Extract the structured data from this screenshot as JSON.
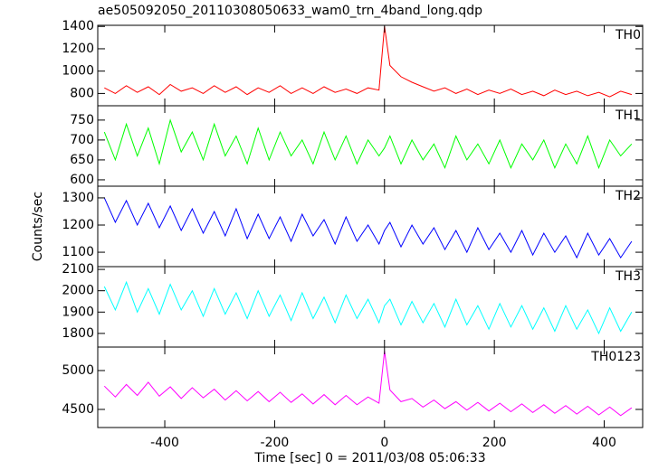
{
  "chart_data": [
    {
      "type": "line",
      "title": "ae505092050_20110308050633_wam0_trn_4band_long.qdp",
      "label": "TH0",
      "color": "#ff0000",
      "x": [
        -510,
        -490,
        -470,
        -450,
        -430,
        -410,
        -390,
        -370,
        -350,
        -330,
        -310,
        -290,
        -270,
        -250,
        -230,
        -210,
        -190,
        -170,
        -150,
        -130,
        -110,
        -90,
        -70,
        -50,
        -30,
        -10,
        0,
        10,
        30,
        50,
        70,
        90,
        110,
        130,
        150,
        170,
        190,
        210,
        230,
        250,
        270,
        290,
        310,
        330,
        350,
        370,
        390,
        410,
        430,
        450
      ],
      "values": [
        850,
        800,
        870,
        810,
        860,
        790,
        880,
        820,
        850,
        800,
        870,
        810,
        860,
        790,
        850,
        810,
        870,
        800,
        850,
        800,
        860,
        810,
        840,
        800,
        850,
        830,
        1400,
        1050,
        950,
        900,
        860,
        820,
        850,
        800,
        840,
        790,
        830,
        800,
        840,
        790,
        820,
        780,
        830,
        790,
        820,
        780,
        810,
        770,
        820,
        790
      ],
      "xlim": [
        -522,
        470
      ],
      "ylim": [
        690,
        1410
      ],
      "yticks": [
        800,
        1000,
        1200,
        1400
      ]
    },
    {
      "type": "line",
      "label": "TH1",
      "color": "#00ff00",
      "x": [
        -510,
        -490,
        -470,
        -450,
        -430,
        -410,
        -390,
        -370,
        -350,
        -330,
        -310,
        -290,
        -270,
        -250,
        -230,
        -210,
        -190,
        -170,
        -150,
        -130,
        -110,
        -90,
        -70,
        -50,
        -30,
        -10,
        0,
        10,
        30,
        50,
        70,
        90,
        110,
        130,
        150,
        170,
        190,
        210,
        230,
        250,
        270,
        290,
        310,
        330,
        350,
        370,
        390,
        410,
        430,
        450
      ],
      "values": [
        720,
        650,
        740,
        660,
        730,
        640,
        750,
        670,
        720,
        650,
        740,
        660,
        710,
        640,
        730,
        650,
        720,
        660,
        700,
        640,
        720,
        650,
        710,
        640,
        700,
        660,
        680,
        710,
        640,
        700,
        650,
        690,
        630,
        710,
        650,
        690,
        640,
        700,
        630,
        690,
        650,
        700,
        630,
        690,
        640,
        710,
        630,
        700,
        660,
        690
      ],
      "xlim": [
        -522,
        470
      ],
      "ylim": [
        584,
        786
      ],
      "yticks": [
        600,
        650,
        700,
        750
      ]
    },
    {
      "type": "line",
      "label": "TH2",
      "ylabel": "Counts/sec",
      "color": "#0000ff",
      "x": [
        -510,
        -490,
        -470,
        -450,
        -430,
        -410,
        -390,
        -370,
        -350,
        -330,
        -310,
        -290,
        -270,
        -250,
        -230,
        -210,
        -190,
        -170,
        -150,
        -130,
        -110,
        -90,
        -70,
        -50,
        -30,
        -10,
        0,
        10,
        30,
        50,
        70,
        90,
        110,
        130,
        150,
        170,
        190,
        210,
        230,
        250,
        270,
        290,
        310,
        330,
        350,
        370,
        390,
        410,
        430,
        450
      ],
      "values": [
        1300,
        1210,
        1290,
        1200,
        1280,
        1190,
        1270,
        1180,
        1260,
        1170,
        1250,
        1160,
        1260,
        1150,
        1240,
        1150,
        1230,
        1140,
        1240,
        1160,
        1220,
        1130,
        1230,
        1140,
        1200,
        1130,
        1180,
        1210,
        1120,
        1200,
        1130,
        1190,
        1110,
        1180,
        1100,
        1190,
        1110,
        1170,
        1100,
        1180,
        1090,
        1170,
        1100,
        1160,
        1080,
        1170,
        1090,
        1150,
        1080,
        1140
      ],
      "xlim": [
        -522,
        470
      ],
      "ylim": [
        1047,
        1343
      ],
      "yticks": [
        1100,
        1200,
        1300
      ]
    },
    {
      "type": "line",
      "label": "TH3",
      "color": "#00ffff",
      "x": [
        -510,
        -490,
        -470,
        -450,
        -430,
        -410,
        -390,
        -370,
        -350,
        -330,
        -310,
        -290,
        -270,
        -250,
        -230,
        -210,
        -190,
        -170,
        -150,
        -130,
        -110,
        -90,
        -70,
        -50,
        -30,
        -10,
        0,
        10,
        30,
        50,
        70,
        90,
        110,
        130,
        150,
        170,
        190,
        210,
        230,
        250,
        270,
        290,
        310,
        330,
        350,
        370,
        390,
        410,
        430,
        450
      ],
      "values": [
        2020,
        1910,
        2040,
        1900,
        2010,
        1890,
        2030,
        1910,
        2000,
        1880,
        2010,
        1890,
        1990,
        1870,
        2000,
        1880,
        1980,
        1860,
        1990,
        1870,
        1970,
        1850,
        1980,
        1870,
        1960,
        1850,
        1930,
        1960,
        1840,
        1950,
        1850,
        1940,
        1830,
        1960,
        1840,
        1930,
        1820,
        1940,
        1830,
        1930,
        1820,
        1920,
        1810,
        1930,
        1820,
        1910,
        1800,
        1920,
        1810,
        1900
      ],
      "xlim": [
        -522,
        470
      ],
      "ylim": [
        1736,
        2113
      ],
      "yticks": [
        1800,
        1900,
        2000,
        2100
      ]
    },
    {
      "type": "line",
      "label": "TH0123",
      "xlabel": "Time [sec] 0 = 2011/03/08 05:06:33",
      "color": "#ff00ff",
      "x": [
        -510,
        -490,
        -470,
        -450,
        -430,
        -410,
        -390,
        -370,
        -350,
        -330,
        -310,
        -290,
        -270,
        -250,
        -230,
        -210,
        -190,
        -170,
        -150,
        -130,
        -110,
        -90,
        -70,
        -50,
        -30,
        -10,
        0,
        10,
        30,
        50,
        70,
        90,
        110,
        130,
        150,
        170,
        190,
        210,
        230,
        250,
        270,
        290,
        310,
        330,
        350,
        370,
        390,
        410,
        430,
        450
      ],
      "values": [
        4800,
        4660,
        4820,
        4680,
        4850,
        4670,
        4790,
        4640,
        4780,
        4650,
        4760,
        4620,
        4740,
        4610,
        4730,
        4600,
        4720,
        4590,
        4700,
        4570,
        4690,
        4560,
        4680,
        4560,
        4660,
        4580,
        5250,
        4750,
        4600,
        4640,
        4530,
        4620,
        4510,
        4600,
        4490,
        4590,
        4480,
        4580,
        4470,
        4570,
        4460,
        4560,
        4450,
        4550,
        4440,
        4540,
        4430,
        4530,
        4420,
        4520
      ],
      "xlim": [
        -522,
        470
      ],
      "ylim": [
        4267,
        5302
      ],
      "yticks": [
        4500,
        5000
      ],
      "xticks": [
        -400,
        -200,
        0,
        200,
        400
      ]
    }
  ]
}
